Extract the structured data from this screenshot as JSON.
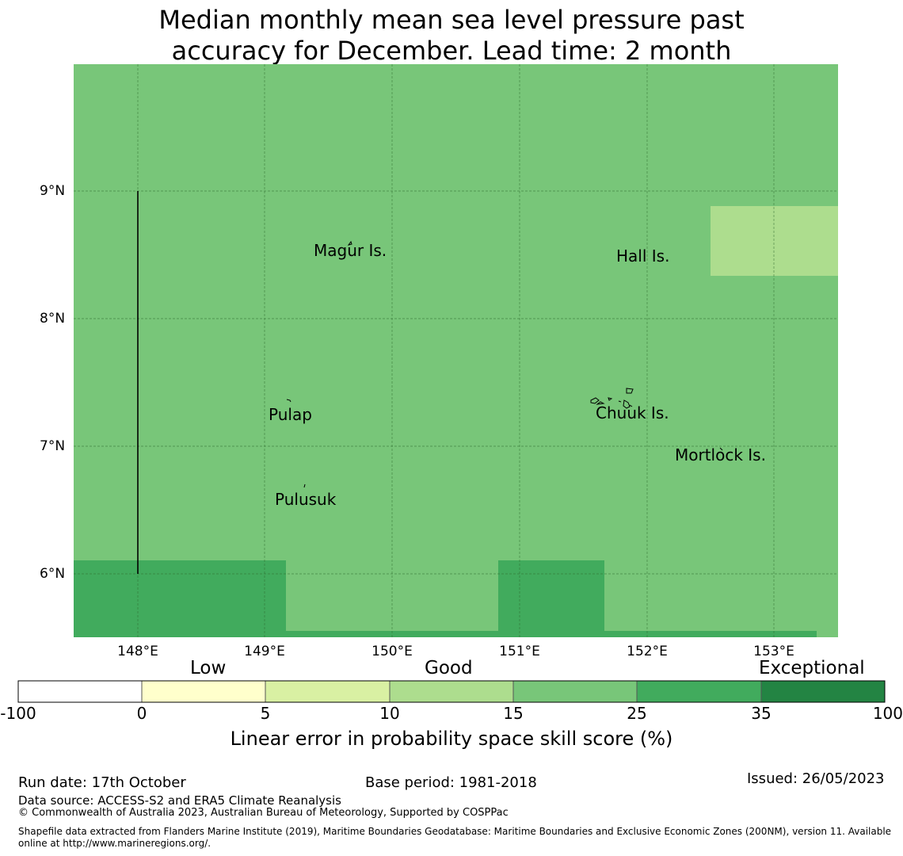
{
  "title": {
    "line1": "Median monthly mean sea level pressure past",
    "line2": "accuracy for December. Lead time: 2 month"
  },
  "map": {
    "lat_labels": [
      "9°N",
      "8°N",
      "7°N",
      "6°N"
    ],
    "lon_labels": [
      "148°E",
      "149°E",
      "150°E",
      "151°E",
      "152°E",
      "153°E"
    ],
    "places": [
      "Magur Is.",
      "Hall Is.",
      "Pulap",
      "Chuuk Is.",
      "Mortlock Is.",
      "Pulusuk"
    ],
    "colors": {
      "skill_15_25": "#78c679",
      "skill_10_15": "#addd8e",
      "skill_25_35": "#41ab5d"
    }
  },
  "legend": {
    "categories": [
      "Low",
      "Good",
      "Exceptional"
    ],
    "ticks": [
      "-100",
      "0",
      "5",
      "10",
      "15",
      "25",
      "35",
      "100"
    ],
    "colors": [
      "#ffffff",
      "#ffffcc",
      "#d9f0a3",
      "#addd8e",
      "#78c679",
      "#41ab5d",
      "#238443"
    ],
    "title": "Linear error in probability space skill score (%)"
  },
  "footer": {
    "run_date": "Run date: 17th October",
    "base_period": "Base period: 1981-2018",
    "issued": "Issued: 26/05/2023",
    "data_source": "Data source: ACCESS-S2 and ERA5 Climate Reanalysis",
    "copyright": "© Commonwealth of Australia 2023, Australian Bureau of Meteorology, Supported by COSPPac",
    "shapefile_line1": "Shapefile data extracted from Flanders Marine Institute (2019), Maritime Boundaries Geodatabase: Maritime Boundaries and Exclusive Economic Zones (200NM), version 11. Available",
    "shapefile_line2": "online at http://www.marineregions.org/."
  }
}
